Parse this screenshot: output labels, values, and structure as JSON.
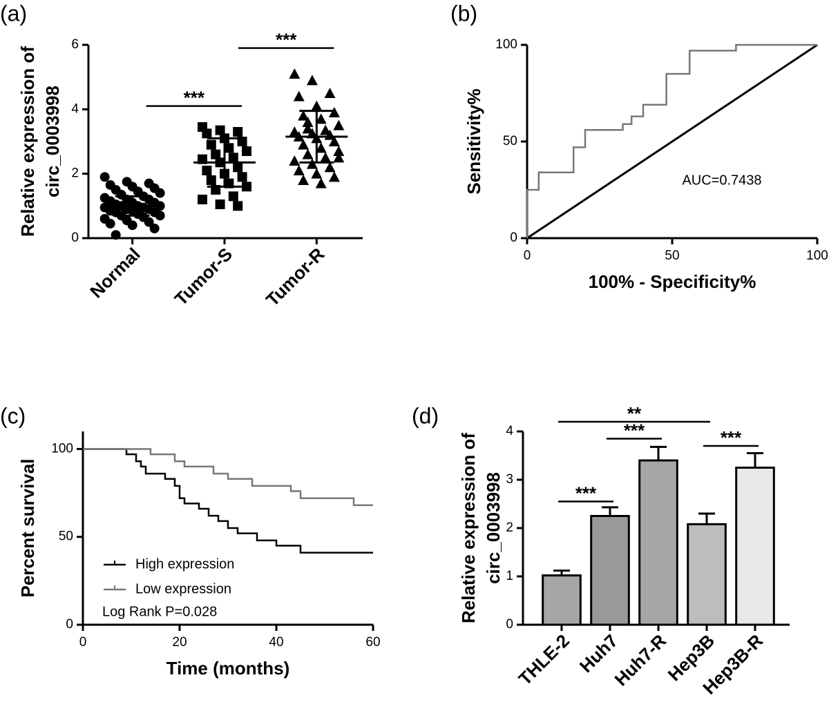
{
  "chart_data": [
    {
      "type": "strip",
      "panel_label": "(a)",
      "ylabel": [
        "Relative expression of",
        "circ_0003998"
      ],
      "categories": [
        "Normal",
        "Tumor-S",
        "Tumor-R"
      ],
      "groups": [
        {
          "marker": "circle",
          "mean": 1.0,
          "sd": 0.3,
          "values": [
            1.9,
            1.75,
            1.7,
            1.65,
            1.6,
            1.55,
            1.5,
            1.45,
            1.4,
            1.35,
            1.3,
            1.25,
            1.2,
            1.2,
            1.15,
            1.1,
            1.1,
            1.05,
            1.0,
            1.0,
            1.0,
            0.95,
            0.95,
            0.9,
            0.9,
            0.85,
            0.85,
            0.8,
            0.8,
            0.75,
            0.7,
            0.7,
            0.65,
            0.6,
            0.55,
            0.5,
            0.45,
            0.4,
            0.3,
            0.1
          ]
        },
        {
          "marker": "square",
          "mean": 2.35,
          "sd": 0.75,
          "values": [
            3.45,
            3.35,
            3.3,
            3.25,
            3.1,
            3.0,
            2.9,
            2.8,
            2.7,
            2.6,
            2.5,
            2.45,
            2.35,
            2.2,
            2.1,
            2.0,
            1.9,
            1.8,
            1.7,
            1.6,
            1.5,
            1.3,
            1.2,
            1.05,
            1.0
          ]
        },
        {
          "marker": "triangle",
          "mean": 3.15,
          "sd": 0.8,
          "values": [
            5.1,
            4.9,
            4.5,
            4.4,
            4.1,
            3.9,
            3.8,
            3.7,
            3.5,
            3.4,
            3.35,
            3.3,
            3.25,
            3.2,
            3.15,
            3.1,
            3.0,
            2.9,
            2.8,
            2.7,
            2.6,
            2.5,
            2.4,
            2.3,
            2.2,
            2.1,
            2.0,
            1.9,
            1.8,
            1.7,
            2.5,
            3.6
          ]
        }
      ],
      "comparisons": [
        {
          "groups": [
            0,
            1
          ],
          "y": 4.1,
          "label": "***"
        },
        {
          "groups": [
            1,
            2
          ],
          "y": 5.9,
          "label": "***"
        }
      ],
      "ylim": [
        0,
        6
      ],
      "yticks": [
        0,
        2,
        4,
        6
      ],
      "color": "#000000"
    },
    {
      "type": "line",
      "panel_label": "(b)",
      "xlabel": "100% - Specificity%",
      "ylabel": [
        "Sensitivity%"
      ],
      "series": [
        {
          "color": "#777777",
          "x": [
            0,
            0,
            4,
            4,
            16,
            16,
            20,
            20,
            33,
            33,
            36,
            36,
            40,
            40,
            48,
            48,
            56,
            56,
            72,
            72,
            100
          ],
          "values": [
            0,
            25,
            25,
            34,
            34,
            47,
            47,
            56,
            56,
            59,
            59,
            63,
            63,
            69,
            69,
            85,
            85,
            97,
            97,
            100,
            100
          ]
        }
      ],
      "diagonal": true,
      "annotation": "AUC=0.7438",
      "xlim": [
        0,
        100
      ],
      "xticks": [
        0,
        50,
        100
      ],
      "ylim": [
        0,
        100
      ],
      "yticks": [
        0,
        50,
        100
      ]
    },
    {
      "type": "line",
      "panel_label": "(c)",
      "xlabel": "Time (months)",
      "ylabel": [
        "Percent survival"
      ],
      "series": [
        {
          "name": "High expression",
          "color": "#000000",
          "x": [
            0,
            9,
            9,
            11,
            11,
            12,
            12,
            13,
            13,
            17,
            17,
            19,
            19,
            20,
            20,
            21,
            21,
            24,
            24,
            26,
            26,
            28,
            28,
            30,
            30,
            32,
            32,
            36,
            36,
            40,
            40,
            45,
            45,
            60
          ],
          "values": [
            100,
            100,
            97,
            97,
            93,
            93,
            90,
            90,
            86,
            86,
            83,
            83,
            79,
            79,
            72,
            72,
            69,
            69,
            66,
            66,
            62,
            62,
            59,
            59,
            55,
            55,
            52,
            52,
            48,
            48,
            45,
            45,
            41,
            41
          ]
        },
        {
          "name": "Low expression",
          "color": "#777777",
          "x": [
            0,
            14,
            14,
            19,
            19,
            21,
            21,
            27,
            27,
            30,
            30,
            35,
            35,
            43,
            43,
            45,
            45,
            56,
            56,
            60
          ],
          "values": [
            100,
            100,
            97,
            97,
            93,
            93,
            90,
            90,
            86,
            86,
            83,
            83,
            79,
            79,
            76,
            76,
            72,
            72,
            68,
            68
          ]
        }
      ],
      "annotation": "Log Rank P=0.028",
      "legend": "lower left",
      "xlim": [
        0,
        60
      ],
      "xticks": [
        0,
        20,
        40,
        60
      ],
      "ylim": [
        0,
        110
      ],
      "yticks": [
        0,
        50,
        100
      ]
    },
    {
      "type": "bar",
      "panel_label": "(d)",
      "ylabel": [
        "Relative expression of",
        "circ_0003998"
      ],
      "categories": [
        "THLE-2",
        "Huh7",
        "Huh7-R",
        "Hep3B",
        "Hep3B-R"
      ],
      "values": [
        1.02,
        2.25,
        3.4,
        2.08,
        3.25
      ],
      "errors": [
        0.1,
        0.18,
        0.28,
        0.22,
        0.3
      ],
      "colors": [
        "#a6a6a6",
        "#999999",
        "#a6a6a6",
        "#bdbdbd",
        "#e8e8e8"
      ],
      "comparisons": [
        {
          "groups": [
            0,
            1
          ],
          "y": 2.55,
          "label": "***"
        },
        {
          "groups": [
            1,
            2
          ],
          "y": 3.85,
          "label": "***"
        },
        {
          "groups": [
            0,
            3
          ],
          "y": 4.2,
          "label": "**"
        },
        {
          "groups": [
            3,
            4
          ],
          "y": 3.7,
          "label": "***"
        }
      ],
      "ylim": [
        0,
        4
      ],
      "yticks": [
        0,
        1,
        2,
        3,
        4
      ]
    }
  ]
}
